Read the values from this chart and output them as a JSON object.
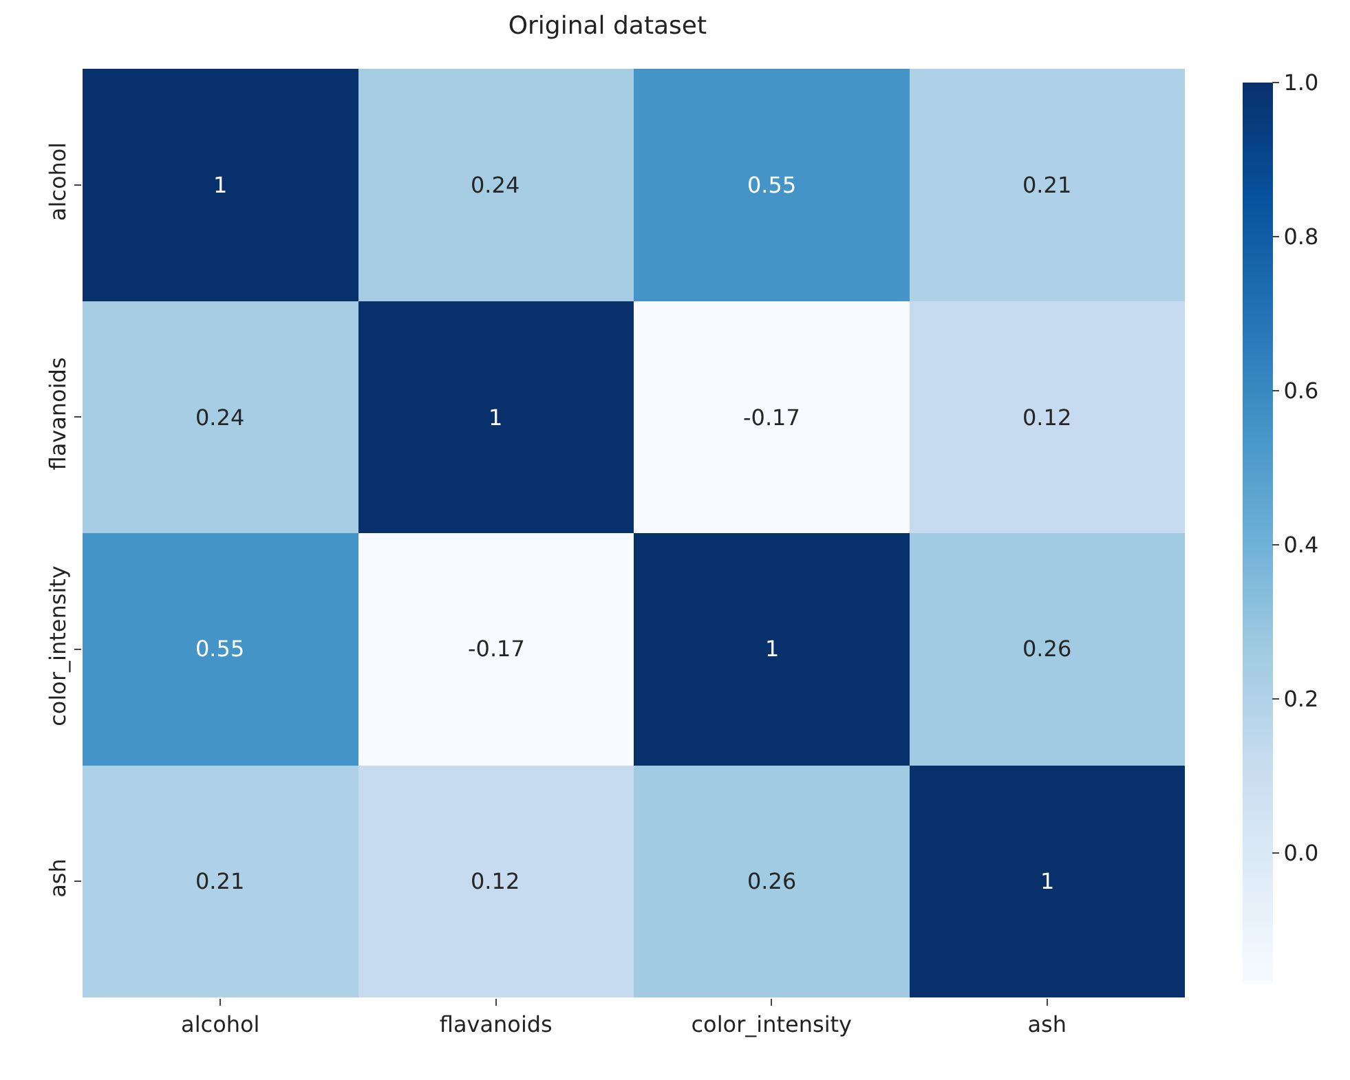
{
  "chart_data": {
    "type": "heatmap",
    "title": "Original dataset",
    "categories": [
      "alcohol",
      "flavanoids",
      "color_intensity",
      "ash"
    ],
    "y_categories": [
      "alcohol",
      "flavanoids",
      "color_intensity",
      "ash"
    ],
    "cells": [
      [
        1,
        0.24,
        0.55,
        0.21
      ],
      [
        0.24,
        1,
        -0.17,
        0.12
      ],
      [
        0.55,
        -0.17,
        1,
        0.26
      ],
      [
        0.21,
        0.12,
        0.26,
        1
      ]
    ],
    "clim": [
      -0.17,
      1
    ],
    "cticks": [
      {
        "value": 0,
        "label": "0.0"
      },
      {
        "value": 0.2,
        "label": "0.2"
      },
      {
        "value": 0.4,
        "label": "0.4"
      },
      {
        "value": 0.6,
        "label": "0.6"
      },
      {
        "value": 0.8,
        "label": "0.8"
      },
      {
        "value": 1,
        "label": "1.0"
      }
    ],
    "data_labels": true
  }
}
